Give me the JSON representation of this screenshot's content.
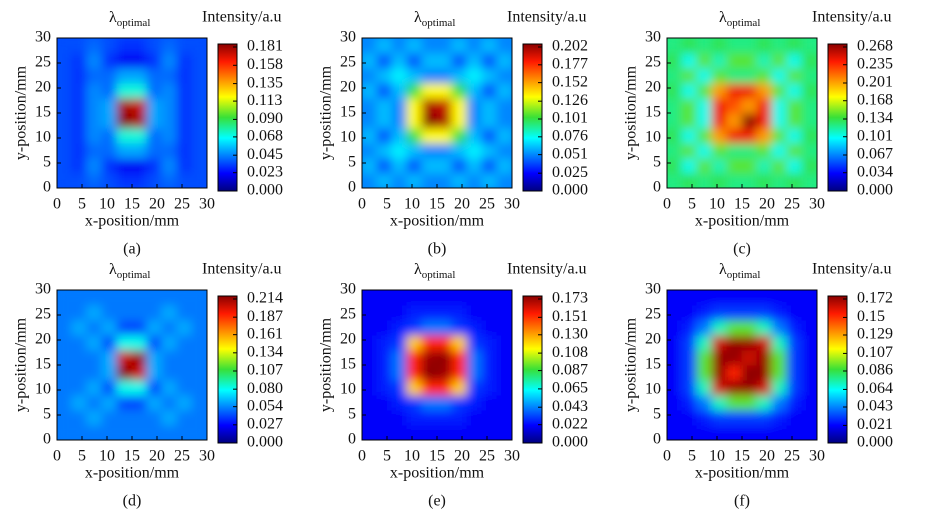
{
  "chart_data": [
    {
      "type": "heatmap",
      "title": "λ",
      "title_sub": "optimal",
      "colorbar_label": "Intensity/a.u",
      "caption": "(a)",
      "xlabel": "x-position/mm",
      "ylabel": "y-position/mm",
      "colormap": "jet",
      "xlim": [
        0,
        30
      ],
      "ylim": [
        0,
        30
      ],
      "xticks": [
        0,
        5,
        10,
        15,
        20,
        25,
        30
      ],
      "yticks": [
        0,
        5,
        10,
        15,
        20,
        25,
        30
      ],
      "x": [
        1.5,
        4.5,
        7.5,
        10.5,
        13.5,
        16.5,
        19.5,
        22.5,
        25.5,
        28.5
      ],
      "y": [
        1.5,
        4.5,
        7.5,
        10.5,
        13.5,
        16.5,
        19.5,
        22.5,
        25.5,
        28.5
      ],
      "zlim": [
        0,
        0.181
      ],
      "zticks": [
        {
          "value": 0,
          "label": "0.000"
        },
        0.023,
        0.045,
        0.068,
        {
          "value": 0.09,
          "label": "0.090"
        },
        0.113,
        0.135,
        0.158,
        0.181
      ],
      "z": [
        [
          0.035,
          0.035,
          0.04,
          0.035,
          0.03,
          0.03,
          0.035,
          0.04,
          0.035,
          0.035
        ],
        [
          0.035,
          0.03,
          0.045,
          0.03,
          0.02,
          0.02,
          0.03,
          0.045,
          0.03,
          0.035
        ],
        [
          0.035,
          0.03,
          0.04,
          0.04,
          0.05,
          0.05,
          0.04,
          0.04,
          0.03,
          0.035
        ],
        [
          0.035,
          0.03,
          0.045,
          0.04,
          0.07,
          0.07,
          0.04,
          0.045,
          0.03,
          0.035
        ],
        [
          0.035,
          0.03,
          0.045,
          0.05,
          0.181,
          0.175,
          0.05,
          0.045,
          0.03,
          0.035
        ],
        [
          0.035,
          0.03,
          0.045,
          0.05,
          0.175,
          0.17,
          0.05,
          0.045,
          0.03,
          0.035
        ],
        [
          0.035,
          0.03,
          0.045,
          0.04,
          0.07,
          0.07,
          0.04,
          0.045,
          0.03,
          0.035
        ],
        [
          0.035,
          0.03,
          0.04,
          0.04,
          0.05,
          0.05,
          0.04,
          0.04,
          0.03,
          0.035
        ],
        [
          0.035,
          0.03,
          0.045,
          0.03,
          0.02,
          0.02,
          0.03,
          0.045,
          0.03,
          0.035
        ],
        [
          0.035,
          0.035,
          0.04,
          0.035,
          0.03,
          0.03,
          0.035,
          0.04,
          0.035,
          0.035
        ]
      ]
    },
    {
      "type": "heatmap",
      "title": "λ",
      "title_sub": "optimal",
      "colorbar_label": "Intensity/a.u",
      "caption": "(b)",
      "xlabel": "x-position/mm",
      "ylabel": "y-position/mm",
      "colormap": "jet",
      "xlim": [
        0,
        30
      ],
      "ylim": [
        0,
        30
      ],
      "xticks": [
        0,
        5,
        10,
        15,
        20,
        25,
        30
      ],
      "yticks": [
        0,
        5,
        10,
        15,
        20,
        25,
        30
      ],
      "x": [
        1.5,
        4.5,
        7.5,
        10.5,
        13.5,
        16.5,
        19.5,
        22.5,
        25.5,
        28.5
      ],
      "y": [
        1.5,
        4.5,
        7.5,
        10.5,
        13.5,
        16.5,
        19.5,
        22.5,
        25.5,
        28.5
      ],
      "zlim": [
        0,
        0.202
      ],
      "zticks": [
        {
          "value": 0,
          "label": "0.000"
        },
        0.025,
        0.051,
        0.076,
        0.101,
        0.126,
        0.152,
        0.177,
        0.202
      ],
      "z": [
        [
          0.05,
          0.06,
          0.05,
          0.06,
          0.05,
          0.05,
          0.06,
          0.05,
          0.06,
          0.05
        ],
        [
          0.06,
          0.04,
          0.06,
          0.04,
          0.06,
          0.06,
          0.04,
          0.06,
          0.04,
          0.06
        ],
        [
          0.05,
          0.06,
          0.07,
          0.06,
          0.05,
          0.05,
          0.06,
          0.07,
          0.06,
          0.05
        ],
        [
          0.06,
          0.04,
          0.06,
          0.1,
          0.13,
          0.13,
          0.1,
          0.06,
          0.04,
          0.06
        ],
        [
          0.05,
          0.06,
          0.05,
          0.13,
          0.202,
          0.195,
          0.13,
          0.05,
          0.06,
          0.05
        ],
        [
          0.05,
          0.06,
          0.05,
          0.13,
          0.195,
          0.19,
          0.13,
          0.05,
          0.06,
          0.05
        ],
        [
          0.06,
          0.04,
          0.06,
          0.1,
          0.13,
          0.13,
          0.1,
          0.06,
          0.04,
          0.06
        ],
        [
          0.05,
          0.06,
          0.07,
          0.06,
          0.05,
          0.05,
          0.06,
          0.07,
          0.06,
          0.05
        ],
        [
          0.06,
          0.04,
          0.06,
          0.04,
          0.06,
          0.06,
          0.04,
          0.06,
          0.04,
          0.06
        ],
        [
          0.05,
          0.06,
          0.05,
          0.06,
          0.05,
          0.05,
          0.06,
          0.05,
          0.06,
          0.05
        ]
      ]
    },
    {
      "type": "heatmap",
      "title": "λ",
      "title_sub": "optimal",
      "colorbar_label": "Intensity/a.u",
      "caption": "(c)",
      "xlabel": "x-position/mm",
      "ylabel": "y-position/mm",
      "colormap": "jet",
      "xlim": [
        0,
        30
      ],
      "ylim": [
        0,
        30
      ],
      "xticks": [
        0,
        5,
        10,
        15,
        20,
        25,
        30
      ],
      "yticks": [
        0,
        5,
        10,
        15,
        20,
        25,
        30
      ],
      "x": [
        1.5,
        4.5,
        7.5,
        10.5,
        13.5,
        16.5,
        19.5,
        22.5,
        25.5,
        28.5
      ],
      "y": [
        1.5,
        4.5,
        7.5,
        10.5,
        13.5,
        16.5,
        19.5,
        22.5,
        25.5,
        28.5
      ],
      "zlim": [
        0,
        0.268
      ],
      "zticks": [
        {
          "value": 0,
          "label": "0.000"
        },
        0.034,
        0.067,
        0.101,
        0.134,
        0.168,
        0.201,
        0.235,
        0.268
      ],
      "z": [
        [
          0.12,
          0.13,
          0.12,
          0.13,
          0.12,
          0.12,
          0.13,
          0.12,
          0.13,
          0.12
        ],
        [
          0.13,
          0.1,
          0.14,
          0.11,
          0.14,
          0.14,
          0.11,
          0.14,
          0.1,
          0.13
        ],
        [
          0.12,
          0.14,
          0.1,
          0.14,
          0.12,
          0.12,
          0.14,
          0.1,
          0.14,
          0.12
        ],
        [
          0.13,
          0.1,
          0.14,
          0.2,
          0.24,
          0.24,
          0.2,
          0.14,
          0.1,
          0.13
        ],
        [
          0.12,
          0.14,
          0.1,
          0.24,
          0.2,
          0.268,
          0.24,
          0.1,
          0.14,
          0.12
        ],
        [
          0.12,
          0.14,
          0.1,
          0.24,
          0.22,
          0.2,
          0.24,
          0.1,
          0.14,
          0.12
        ],
        [
          0.13,
          0.1,
          0.14,
          0.2,
          0.24,
          0.24,
          0.2,
          0.14,
          0.1,
          0.13
        ],
        [
          0.12,
          0.14,
          0.1,
          0.14,
          0.12,
          0.12,
          0.14,
          0.1,
          0.14,
          0.12
        ],
        [
          0.13,
          0.1,
          0.14,
          0.11,
          0.14,
          0.14,
          0.11,
          0.14,
          0.1,
          0.13
        ],
        [
          0.12,
          0.13,
          0.12,
          0.13,
          0.12,
          0.12,
          0.13,
          0.12,
          0.13,
          0.12
        ]
      ]
    },
    {
      "type": "heatmap",
      "title": "λ",
      "title_sub": "optimal",
      "colorbar_label": "Intensity/a.u",
      "caption": "(d)",
      "xlabel": "x-position/mm",
      "ylabel": "y-position/mm",
      "colormap": "jet",
      "xlim": [
        0,
        30
      ],
      "ylim": [
        0,
        30
      ],
      "xticks": [
        0,
        5,
        10,
        15,
        20,
        25,
        30
      ],
      "yticks": [
        0,
        5,
        10,
        15,
        20,
        25,
        30
      ],
      "x": [
        1.5,
        4.5,
        7.5,
        10.5,
        13.5,
        16.5,
        19.5,
        22.5,
        25.5,
        28.5
      ],
      "y": [
        1.5,
        4.5,
        7.5,
        10.5,
        13.5,
        16.5,
        19.5,
        22.5,
        25.5,
        28.5
      ],
      "zlim": [
        0,
        0.214
      ],
      "zticks": [
        {
          "value": 0,
          "label": "0.000"
        },
        0.027,
        0.054,
        {
          "value": 0.08,
          "label": "0.080"
        },
        0.107,
        0.134,
        0.161,
        0.187,
        0.214
      ],
      "z": [
        [
          0.05,
          0.05,
          0.05,
          0.05,
          0.05,
          0.05,
          0.05,
          0.05,
          0.05,
          0.05
        ],
        [
          0.05,
          0.05,
          0.06,
          0.05,
          0.05,
          0.05,
          0.05,
          0.06,
          0.05,
          0.05
        ],
        [
          0.05,
          0.06,
          0.05,
          0.06,
          0.04,
          0.04,
          0.06,
          0.05,
          0.06,
          0.05
        ],
        [
          0.05,
          0.05,
          0.06,
          0.04,
          0.08,
          0.08,
          0.04,
          0.06,
          0.05,
          0.05
        ],
        [
          0.05,
          0.05,
          0.05,
          0.06,
          0.214,
          0.2,
          0.06,
          0.05,
          0.05,
          0.05
        ],
        [
          0.05,
          0.05,
          0.05,
          0.06,
          0.2,
          0.21,
          0.06,
          0.05,
          0.05,
          0.05
        ],
        [
          0.05,
          0.05,
          0.06,
          0.04,
          0.08,
          0.08,
          0.04,
          0.06,
          0.05,
          0.05
        ],
        [
          0.05,
          0.06,
          0.05,
          0.06,
          0.04,
          0.04,
          0.06,
          0.05,
          0.06,
          0.05
        ],
        [
          0.05,
          0.05,
          0.06,
          0.05,
          0.05,
          0.05,
          0.05,
          0.06,
          0.05,
          0.05
        ],
        [
          0.05,
          0.05,
          0.05,
          0.05,
          0.05,
          0.05,
          0.05,
          0.05,
          0.05,
          0.05
        ]
      ]
    },
    {
      "type": "heatmap",
      "title": "λ",
      "title_sub": "optimal",
      "colorbar_label": "Intensity/a.u",
      "caption": "(e)",
      "xlabel": "x-position/mm",
      "ylabel": "y-position/mm",
      "colormap": "jet",
      "xlim": [
        0,
        30
      ],
      "ylim": [
        0,
        30
      ],
      "xticks": [
        0,
        5,
        10,
        15,
        20,
        25,
        30
      ],
      "yticks": [
        0,
        5,
        10,
        15,
        20,
        25,
        30
      ],
      "x": [
        1.5,
        4.5,
        7.5,
        10.5,
        13.5,
        16.5,
        19.5,
        22.5,
        25.5,
        28.5
      ],
      "y": [
        1.5,
        4.5,
        7.5,
        10.5,
        13.5,
        16.5,
        19.5,
        22.5,
        25.5,
        28.5
      ],
      "zlim": [
        0,
        0.173
      ],
      "zticks": [
        {
          "value": 0,
          "label": "0.000"
        },
        0.022,
        0.043,
        0.065,
        0.087,
        0.108,
        {
          "value": 0.13,
          "label": "0.130"
        },
        0.151,
        0.173
      ],
      "z": [
        [
          0.02,
          0.02,
          0.02,
          0.02,
          0.02,
          0.02,
          0.02,
          0.02,
          0.02,
          0.02
        ],
        [
          0.02,
          0.02,
          0.02,
          0.025,
          0.025,
          0.025,
          0.025,
          0.02,
          0.02,
          0.02
        ],
        [
          0.02,
          0.02,
          0.025,
          0.03,
          0.04,
          0.04,
          0.03,
          0.025,
          0.02,
          0.02
        ],
        [
          0.02,
          0.025,
          0.03,
          0.12,
          0.15,
          0.15,
          0.12,
          0.03,
          0.025,
          0.02
        ],
        [
          0.02,
          0.025,
          0.04,
          0.15,
          0.173,
          0.17,
          0.15,
          0.04,
          0.025,
          0.02
        ],
        [
          0.02,
          0.025,
          0.04,
          0.15,
          0.17,
          0.172,
          0.15,
          0.04,
          0.025,
          0.02
        ],
        [
          0.02,
          0.025,
          0.03,
          0.12,
          0.15,
          0.15,
          0.12,
          0.03,
          0.025,
          0.02
        ],
        [
          0.02,
          0.02,
          0.025,
          0.03,
          0.04,
          0.04,
          0.03,
          0.025,
          0.02,
          0.02
        ],
        [
          0.02,
          0.02,
          0.02,
          0.025,
          0.025,
          0.025,
          0.025,
          0.02,
          0.02,
          0.02
        ],
        [
          0.02,
          0.02,
          0.02,
          0.02,
          0.02,
          0.02,
          0.02,
          0.02,
          0.02,
          0.02
        ]
      ]
    },
    {
      "type": "heatmap",
      "title": "λ",
      "title_sub": "optimal",
      "colorbar_label": "Intensity/a.u",
      "caption": "(f)",
      "xlabel": "x-position/mm",
      "ylabel": "y-position/mm",
      "colormap": "jet",
      "xlim": [
        0,
        30
      ],
      "ylim": [
        0,
        30
      ],
      "xticks": [
        0,
        5,
        10,
        15,
        20,
        25,
        30
      ],
      "yticks": [
        0,
        5,
        10,
        15,
        20,
        25,
        30
      ],
      "x": [
        1.5,
        4.5,
        7.5,
        10.5,
        13.5,
        16.5,
        19.5,
        22.5,
        25.5,
        28.5
      ],
      "y": [
        1.5,
        4.5,
        7.5,
        10.5,
        13.5,
        16.5,
        19.5,
        22.5,
        25.5,
        28.5
      ],
      "zlim": [
        0,
        0.172
      ],
      "zticks": [
        {
          "value": 0,
          "label": "0.000"
        },
        0.021,
        0.043,
        0.064,
        0.086,
        0.107,
        0.129,
        0.15,
        0.172
      ],
      "z": [
        [
          0.02,
          0.02,
          0.02,
          0.02,
          0.02,
          0.02,
          0.02,
          0.02,
          0.02,
          0.02
        ],
        [
          0.02,
          0.02,
          0.025,
          0.03,
          0.03,
          0.03,
          0.03,
          0.025,
          0.02,
          0.02
        ],
        [
          0.02,
          0.025,
          0.04,
          0.07,
          0.09,
          0.09,
          0.07,
          0.04,
          0.025,
          0.02
        ],
        [
          0.02,
          0.03,
          0.07,
          0.16,
          0.17,
          0.17,
          0.16,
          0.07,
          0.03,
          0.02
        ],
        [
          0.02,
          0.03,
          0.09,
          0.17,
          0.15,
          0.172,
          0.17,
          0.09,
          0.03,
          0.02
        ],
        [
          0.02,
          0.03,
          0.09,
          0.17,
          0.17,
          0.16,
          0.17,
          0.09,
          0.03,
          0.02
        ],
        [
          0.02,
          0.03,
          0.07,
          0.16,
          0.17,
          0.17,
          0.16,
          0.07,
          0.03,
          0.02
        ],
        [
          0.02,
          0.025,
          0.04,
          0.07,
          0.09,
          0.09,
          0.07,
          0.04,
          0.025,
          0.02
        ],
        [
          0.02,
          0.02,
          0.025,
          0.03,
          0.03,
          0.03,
          0.03,
          0.025,
          0.02,
          0.02
        ],
        [
          0.02,
          0.02,
          0.02,
          0.02,
          0.02,
          0.02,
          0.02,
          0.02,
          0.02,
          0.02
        ]
      ]
    }
  ]
}
